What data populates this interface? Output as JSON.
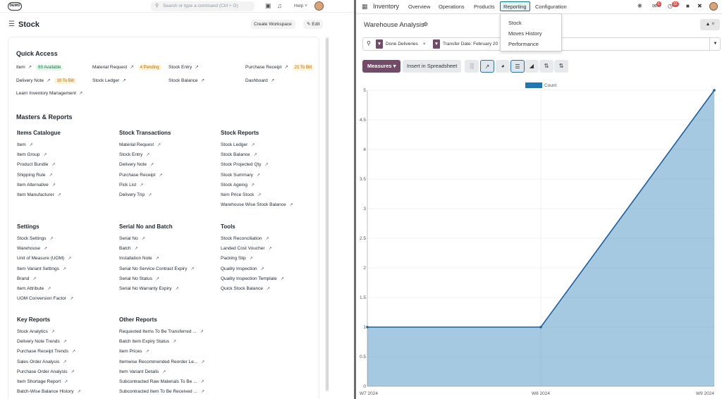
{
  "left": {
    "logo": "DEMO",
    "search_placeholder": "Search or type a command (Ctrl + G)",
    "help": "Help",
    "page_title": "Stock",
    "create_workspace": "Create Workspace",
    "edit": "Edit",
    "quick_access": {
      "title": "Quick Access",
      "items": [
        {
          "label": "Item",
          "badge": "69 Available",
          "badge_color": "green"
        },
        {
          "label": "Material Request",
          "badge": "4 Pending",
          "badge_color": "orange"
        },
        {
          "label": "Stock Entry",
          "badge": "",
          "badge_color": ""
        },
        {
          "label": "Purchase Receipt",
          "badge": "21 To Bill",
          "badge_color": "orange"
        },
        {
          "label": "Delivery Note",
          "badge": "10 To Bill",
          "badge_color": "orange"
        },
        {
          "label": "Stock Ledger",
          "badge": "",
          "badge_color": ""
        },
        {
          "label": "Stock Balance",
          "badge": "",
          "badge_color": ""
        },
        {
          "label": "Dashboard",
          "badge": "",
          "badge_color": ""
        },
        {
          "label": "Learn Inventory Management",
          "badge": "",
          "badge_color": ""
        }
      ]
    },
    "masters_title": "Masters & Reports",
    "cards": [
      {
        "title": "Items Catalogue",
        "links": [
          "Item",
          "Item Group",
          "Product Bundle",
          "Shipping Rule",
          "Item Alternative",
          "Item Manufacturer"
        ]
      },
      {
        "title": "Stock Transactions",
        "links": [
          "Material Request",
          "Stock Entry",
          "Delivery Note",
          "Purchase Receipt",
          "Pick List",
          "Delivery Trip"
        ]
      },
      {
        "title": "Stock Reports",
        "links": [
          "Stock Ledger",
          "Stock Balance",
          "Stock Projected Qty",
          "Stock Summary",
          "Stock Ageing",
          "Item Price Stock",
          "Warehouse Wise Stock Balance"
        ]
      },
      {
        "title": "Settings",
        "links": [
          "Stock Settings",
          "Warehouse",
          "Unit of Measure (UOM)",
          "Item Variant Settings",
          "Brand",
          "Item Attribute",
          "UOM Conversion Factor"
        ]
      },
      {
        "title": "Serial No and Batch",
        "links": [
          "Serial No",
          "Batch",
          "Installation Note",
          "Serial No Service Contract Expiry",
          "Serial No Status",
          "Serial No Warranty Expiry"
        ]
      },
      {
        "title": "Tools",
        "links": [
          "Stock Reconciliation",
          "Landed Cost Voucher",
          "Packing Slip",
          "Quality Inspection",
          "Quality Inspection Template",
          "Quick Stock Balance"
        ]
      },
      {
        "title": "Key Reports",
        "links": [
          "Stock Analytics",
          "Delivery Note Trends",
          "Purchase Receipt Trends",
          "Sales Order Analysis",
          "Purchase Order Analysis",
          "Item Shortage Report",
          "Batch-Wise Balance History"
        ]
      },
      {
        "title": "Other Reports",
        "links": [
          "Requested Items To Be Transferred ...",
          "Batch Item Expiry Status",
          "Item Prices",
          "Itemwise Recommended Reorder Le...",
          "Item Variant Details",
          "Subcontracted Raw Materials To Be ...",
          "Subcontracted Item To Be Received ..."
        ]
      }
    ]
  },
  "right": {
    "app_name": "Inventory",
    "menu": [
      "Overview",
      "Operations",
      "Products",
      "Reporting",
      "Configuration"
    ],
    "active_menu": "Reporting",
    "badges": {
      "messages": "6",
      "activities": "32"
    },
    "dropdown": [
      "Stock",
      "Moves History",
      "Performance"
    ],
    "view_title": "Warehouse Analysis",
    "facets": [
      "Done Deliveries",
      "Transfer Date: February 20"
    ],
    "measures": "Measures",
    "insert": "Insert in Spreadsheet",
    "accent": "#714b67"
  },
  "chart_data": {
    "type": "area",
    "x": [
      "W7 2024",
      "W8 2024",
      "W9 2024"
    ],
    "series": [
      {
        "name": "Count",
        "values": [
          1,
          1,
          5
        ]
      }
    ],
    "yticks": [
      "0",
      "0.5",
      "1",
      "1.5",
      "2",
      "2.5",
      "3",
      "3.5",
      "4",
      "4.5",
      "5"
    ],
    "ylim": [
      0,
      5
    ],
    "legend": "top",
    "grid": true,
    "color": "#1f77b4"
  }
}
